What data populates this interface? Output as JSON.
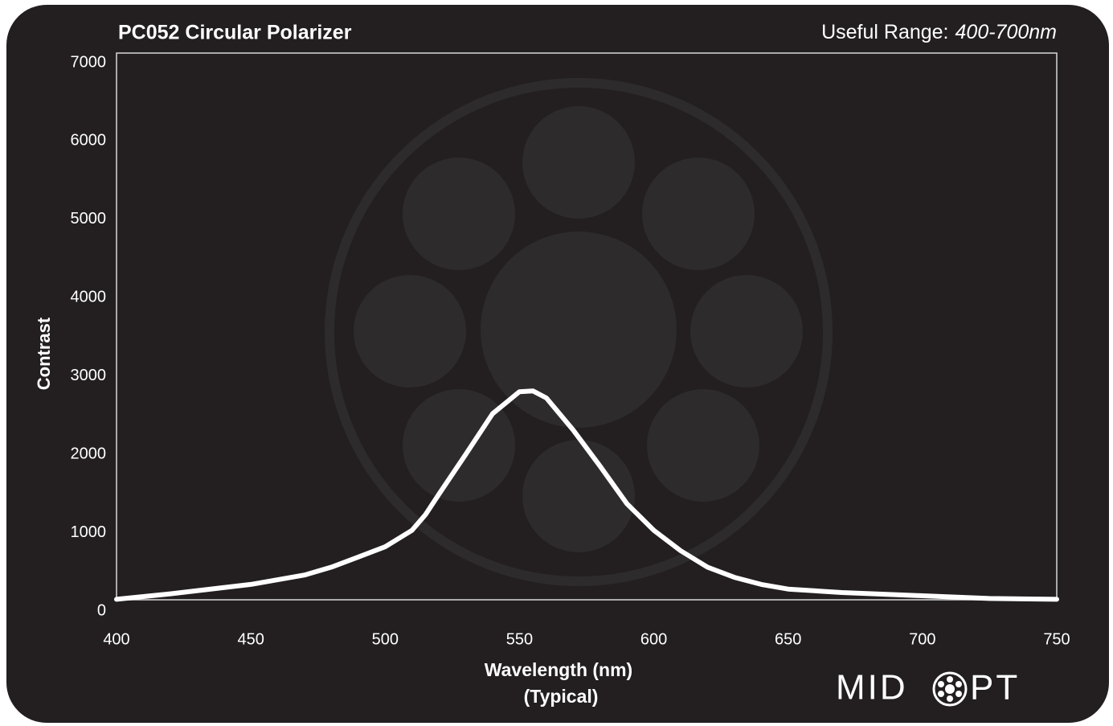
{
  "chart_data": {
    "type": "line",
    "title": "PC052 Circular Polarizer",
    "subtitle_label": "Useful Range:",
    "subtitle_value": "400-700nm",
    "x_label": "Wavelength (nm)",
    "x_label_note": "(Typical)",
    "y_label": "Contrast",
    "x": [
      400,
      420,
      450,
      470,
      480,
      490,
      500,
      510,
      515,
      520,
      530,
      540,
      550,
      555,
      560,
      570,
      580,
      590,
      600,
      610,
      620,
      630,
      640,
      650,
      670,
      700,
      725,
      750
    ],
    "series": [
      {
        "name": "Contrast",
        "color": "#ffffff",
        "values": [
          150,
          220,
          340,
          460,
          560,
          690,
          820,
          1030,
          1230,
          1490,
          2000,
          2520,
          2800,
          2810,
          2720,
          2310,
          1850,
          1370,
          1030,
          770,
          560,
          430,
          340,
          280,
          236,
          195,
          160,
          150
        ]
      }
    ],
    "xlim": [
      400,
      750
    ],
    "xticks": [
      400,
      450,
      500,
      550,
      600,
      650,
      700,
      750
    ],
    "ylim": [
      0,
      7000
    ],
    "yticks": [
      0,
      1000,
      2000,
      3000,
      4000,
      5000,
      6000,
      7000
    ],
    "grid": false,
    "logo_left": "MID",
    "logo_right": "PT"
  }
}
